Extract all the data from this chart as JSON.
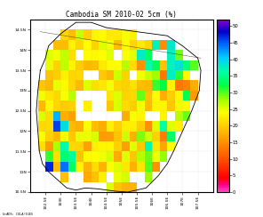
{
  "title": "Cambodia SM 2010-02 5cm (%)",
  "lon_min": 102.0,
  "lon_max": 108.0,
  "lat_min": 10.5,
  "lat_max": 14.75,
  "colorbar_ticks": [
    0,
    5,
    10,
    15,
    20,
    25,
    30,
    35,
    40,
    45,
    50
  ],
  "vmin": 0,
  "vmax": 52,
  "source_text": "GrADS: COLA/IGES",
  "xtick_vals": [
    102.5,
    103.0,
    103.5,
    104.0,
    104.5,
    105.0,
    105.5,
    106.0,
    106.5,
    107.0,
    107.5
  ],
  "ytick_vals": [
    10.5,
    11.0,
    11.5,
    12.0,
    12.5,
    13.0,
    13.5,
    14.0,
    14.5
  ],
  "background_color": "#ffffff",
  "cmap_colors": [
    [
      0.0,
      "#ff44cc"
    ],
    [
      0.04,
      "#ff0088"
    ],
    [
      0.08,
      "#ff0000"
    ],
    [
      0.15,
      "#ff3300"
    ],
    [
      0.22,
      "#ff6600"
    ],
    [
      0.3,
      "#ff9900"
    ],
    [
      0.38,
      "#ffcc00"
    ],
    [
      0.46,
      "#ffff00"
    ],
    [
      0.54,
      "#99ff00"
    ],
    [
      0.62,
      "#00ff44"
    ],
    [
      0.7,
      "#00ffaa"
    ],
    [
      0.78,
      "#00ccff"
    ],
    [
      0.86,
      "#0066ff"
    ],
    [
      0.93,
      "#0000cc"
    ],
    [
      1.0,
      "#8800cc"
    ]
  ]
}
